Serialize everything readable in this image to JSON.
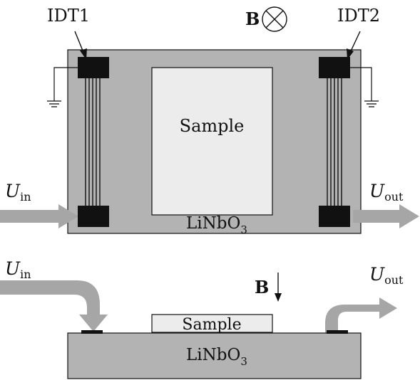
{
  "top_view": {
    "idt1_label": "IDT1",
    "idt2_label": "IDT2",
    "field_label": "B",
    "field_symbol": "out-of-page-cross-circle-icon",
    "sample_label": "Sample",
    "substrate_label": "LiNbO",
    "substrate_subscript": "3",
    "input_label": "U",
    "input_subscript": "in",
    "output_label": "U",
    "output_subscript": "out"
  },
  "side_view": {
    "field_label": "B",
    "field_symbol": "down-arrow-icon",
    "sample_label": "Sample",
    "substrate_label": "LiNbO",
    "substrate_subscript": "3",
    "input_label": "U",
    "input_subscript": "in",
    "output_label": "U",
    "output_subscript": "out"
  },
  "colors": {
    "substrate": "#b3b3b3",
    "sample": "#ececec",
    "transducer": "#111111",
    "arrow": "#a6a6a6",
    "line": "#111111"
  }
}
